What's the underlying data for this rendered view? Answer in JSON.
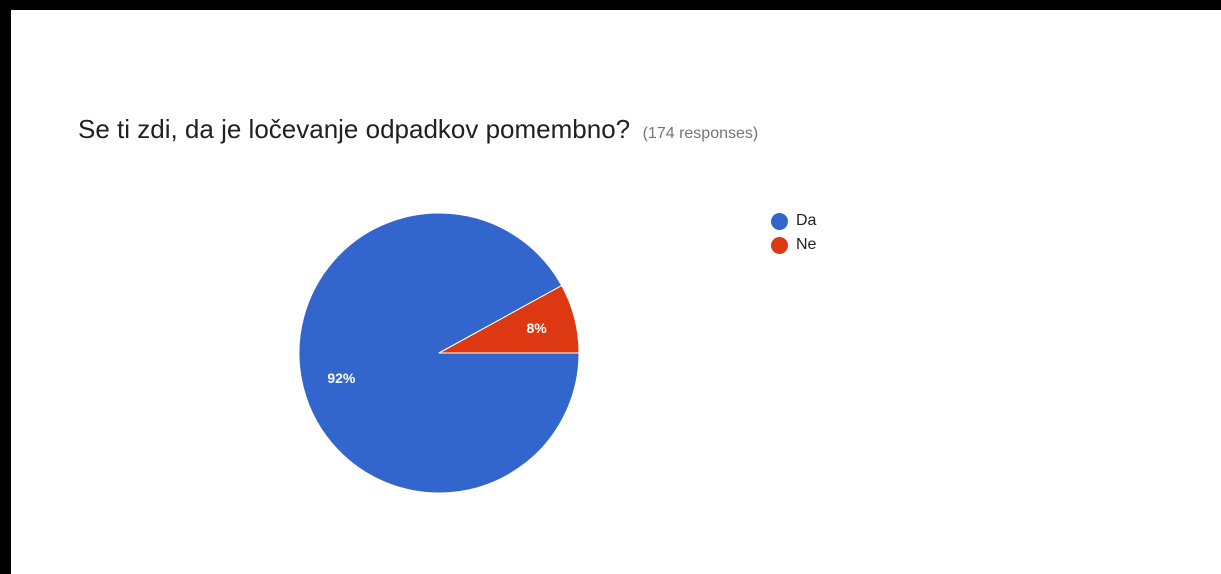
{
  "title": {
    "text": "Se ti zdi, da je ločevanje odpadkov pomembno?",
    "responses": "(174 responses)"
  },
  "chart_data": {
    "type": "pie",
    "title": "Se ti zdi, da je ločevanje odpadkov pomembno?",
    "categories": [
      "Da",
      "Ne"
    ],
    "values": [
      92,
      8
    ],
    "slice_labels": [
      "92%",
      "8%"
    ],
    "colors": [
      "#3366cc",
      "#dc3912"
    ],
    "legend_position": "right"
  }
}
